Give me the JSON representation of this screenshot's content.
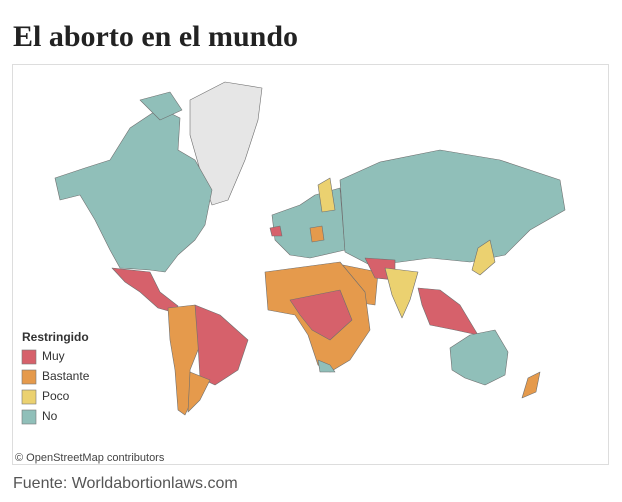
{
  "header": {
    "title": "El aborto en el mundo"
  },
  "legend": {
    "title": "Restringido",
    "items": [
      {
        "label": "Muy",
        "color": "#d6616b"
      },
      {
        "label": "Bastante",
        "color": "#e59a4c"
      },
      {
        "label": "Poco",
        "color": "#ebd170"
      },
      {
        "label": "No",
        "color": "#90bfb9"
      }
    ]
  },
  "map": {
    "attribution": "© OpenStreetMap contributors"
  },
  "footer": {
    "source": "Fuente: Worldabortionlaws.com"
  }
}
